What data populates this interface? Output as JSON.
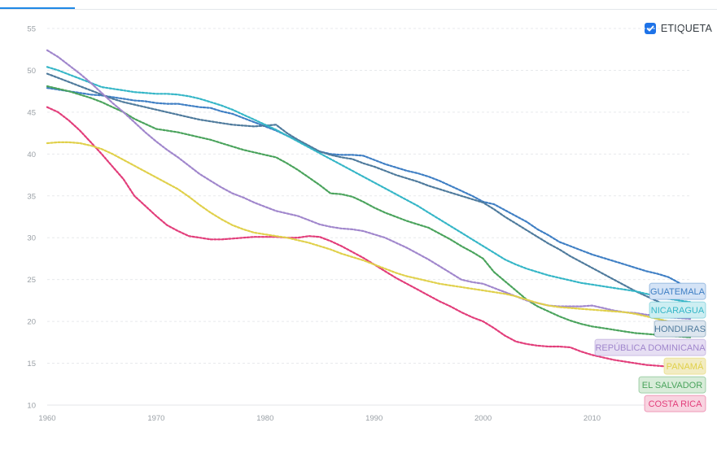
{
  "toggle": {
    "label": "ETIQUETA",
    "checked": true
  },
  "chart_data": {
    "type": "line",
    "x": [
      1960,
      1961,
      1962,
      1963,
      1964,
      1965,
      1966,
      1967,
      1968,
      1969,
      1970,
      1971,
      1972,
      1973,
      1974,
      1975,
      1976,
      1977,
      1978,
      1979,
      1980,
      1981,
      1982,
      1983,
      1984,
      1985,
      1986,
      1987,
      1988,
      1989,
      1990,
      1991,
      1992,
      1993,
      1994,
      1995,
      1996,
      1997,
      1998,
      1999,
      2000,
      2001,
      2002,
      2003,
      2004,
      2005,
      2006,
      2007,
      2008,
      2009,
      2010,
      2011,
      2012,
      2013,
      2014,
      2015,
      2016,
      2017,
      2018,
      2019
    ],
    "xticks": [
      1960,
      1970,
      1980,
      1990,
      2000,
      2010
    ],
    "yticks": [
      10,
      15,
      20,
      25,
      30,
      35,
      40,
      45,
      50,
      55
    ],
    "xlim": [
      1960,
      2019
    ],
    "ylim": [
      10,
      55
    ],
    "grid": true,
    "series": [
      {
        "name": "GUATEMALA",
        "color": "#3f7fc4",
        "label_bg": "#d4e3f6",
        "values": [
          47.9,
          47.7,
          47.5,
          47.3,
          47.1,
          47.0,
          46.8,
          46.6,
          46.4,
          46.3,
          46.1,
          46.0,
          46.0,
          45.8,
          45.6,
          45.5,
          45.1,
          44.8,
          44.3,
          43.8,
          43.3,
          42.8,
          42.2,
          41.6,
          40.9,
          40.3,
          40.0,
          39.9,
          39.9,
          39.8,
          39.3,
          38.8,
          38.4,
          38.0,
          37.7,
          37.3,
          36.8,
          36.2,
          35.6,
          35.0,
          34.3,
          34.0,
          33.3,
          32.6,
          31.9,
          31.0,
          30.3,
          29.5,
          29.0,
          28.5,
          28.0,
          27.6,
          27.2,
          26.8,
          26.4,
          26.0,
          25.7,
          25.3,
          24.6,
          23.6
        ]
      },
      {
        "name": "HONDURAS",
        "color": "#4e7a9c",
        "label_bg": "#dde6ef",
        "values": [
          49.6,
          49.1,
          48.6,
          48.1,
          47.6,
          47.1,
          46.6,
          46.2,
          45.9,
          45.6,
          45.3,
          45.0,
          44.7,
          44.4,
          44.1,
          43.9,
          43.7,
          43.5,
          43.4,
          43.3,
          43.4,
          43.5,
          42.5,
          41.7,
          41.0,
          40.3,
          39.9,
          39.6,
          39.4,
          38.9,
          38.5,
          38.0,
          37.5,
          37.1,
          36.7,
          36.2,
          35.8,
          35.4,
          35.0,
          34.6,
          34.2,
          33.4,
          32.5,
          31.7,
          30.9,
          30.1,
          29.3,
          28.6,
          27.8,
          27.1,
          26.4,
          25.7,
          25.0,
          24.3,
          23.6,
          23.0,
          22.4,
          21.8,
          21.3,
          20.8
        ]
      },
      {
        "name": "EL SALVADOR",
        "color": "#4aa35c",
        "label_bg": "#d8ecd9",
        "values": [
          48.1,
          47.8,
          47.5,
          47.1,
          46.7,
          46.2,
          45.6,
          45.0,
          44.2,
          43.6,
          43.0,
          42.8,
          42.6,
          42.3,
          42.0,
          41.7,
          41.3,
          40.9,
          40.5,
          40.2,
          39.9,
          39.6,
          38.9,
          38.1,
          37.2,
          36.3,
          35.3,
          35.2,
          34.9,
          34.3,
          33.6,
          33.0,
          32.5,
          32.0,
          31.6,
          31.2,
          30.5,
          29.8,
          29.0,
          28.3,
          27.5,
          25.9,
          24.8,
          23.7,
          22.6,
          21.8,
          21.2,
          20.6,
          20.1,
          19.7,
          19.4,
          19.2,
          19.0,
          18.8,
          18.6,
          18.5,
          18.4,
          18.3,
          18.2,
          18.1
        ]
      },
      {
        "name": "NICARAGUA",
        "color": "#35b6c7",
        "label_bg": "#cdeef2",
        "values": [
          50.4,
          50.0,
          49.5,
          49.0,
          48.5,
          48.0,
          47.8,
          47.6,
          47.4,
          47.3,
          47.2,
          47.2,
          47.1,
          46.9,
          46.6,
          46.2,
          45.8,
          45.3,
          44.7,
          44.1,
          43.5,
          42.9,
          42.2,
          41.5,
          40.8,
          40.1,
          39.4,
          38.7,
          38.0,
          37.3,
          36.6,
          35.9,
          35.2,
          34.5,
          33.8,
          33.0,
          32.2,
          31.4,
          30.6,
          29.8,
          29.0,
          28.2,
          27.4,
          26.8,
          26.3,
          25.9,
          25.5,
          25.2,
          24.9,
          24.6,
          24.4,
          24.2,
          24.0,
          23.8,
          23.6,
          23.3,
          23.0,
          22.7,
          22.5,
          22.3
        ]
      },
      {
        "name": "COSTA RICA",
        "color": "#e23d7a",
        "label_bg": "#f8d3e0",
        "values": [
          45.6,
          45.0,
          44.0,
          42.8,
          41.4,
          40.0,
          38.5,
          37.0,
          35.0,
          33.8,
          32.6,
          31.5,
          30.8,
          30.2,
          30.0,
          29.8,
          29.8,
          29.9,
          30.0,
          30.1,
          30.1,
          30.1,
          30.0,
          30.0,
          30.2,
          30.1,
          29.6,
          29.0,
          28.3,
          27.6,
          26.8,
          26.0,
          25.2,
          24.5,
          23.8,
          23.1,
          22.4,
          21.8,
          21.1,
          20.5,
          20.0,
          19.2,
          18.3,
          17.6,
          17.3,
          17.1,
          17.0,
          17.0,
          16.9,
          16.4,
          16.0,
          15.7,
          15.4,
          15.2,
          15.0,
          14.8,
          14.7,
          14.6,
          14.5,
          14.4
        ]
      },
      {
        "name": "REPÚBLICA DOMINICANA",
        "color": "#a086cc",
        "label_bg": "#e6def3",
        "values": [
          52.4,
          51.6,
          50.6,
          49.6,
          48.5,
          47.3,
          46.1,
          45.0,
          43.8,
          42.6,
          41.5,
          40.5,
          39.6,
          38.6,
          37.6,
          36.8,
          36.0,
          35.3,
          34.8,
          34.2,
          33.7,
          33.2,
          32.9,
          32.6,
          32.1,
          31.6,
          31.3,
          31.1,
          31.0,
          30.8,
          30.4,
          30.0,
          29.4,
          28.8,
          28.1,
          27.4,
          26.6,
          25.8,
          25.0,
          24.7,
          24.5,
          24.0,
          23.5,
          23.0,
          22.5,
          22.2,
          21.9,
          21.8,
          21.8,
          21.8,
          21.9,
          21.6,
          21.3,
          21.1,
          21.0,
          20.8,
          20.7,
          20.5,
          20.4,
          20.3
        ]
      },
      {
        "name": "PANAMÁ",
        "color": "#e0d04a",
        "label_bg": "#f2ecc3",
        "values": [
          41.3,
          41.4,
          41.4,
          41.3,
          41.0,
          40.6,
          40.0,
          39.3,
          38.6,
          37.9,
          37.2,
          36.5,
          35.8,
          34.9,
          33.9,
          33.0,
          32.2,
          31.5,
          31.0,
          30.6,
          30.4,
          30.2,
          30.0,
          29.7,
          29.4,
          29.0,
          28.6,
          28.1,
          27.7,
          27.3,
          26.8,
          26.3,
          25.8,
          25.4,
          25.1,
          24.8,
          24.5,
          24.3,
          24.1,
          23.9,
          23.7,
          23.5,
          23.3,
          23.0,
          22.6,
          22.2,
          21.9,
          21.7,
          21.6,
          21.5,
          21.4,
          21.3,
          21.2,
          21.1,
          20.9,
          20.6,
          20.3,
          20.0,
          19.7,
          19.5
        ]
      }
    ]
  }
}
